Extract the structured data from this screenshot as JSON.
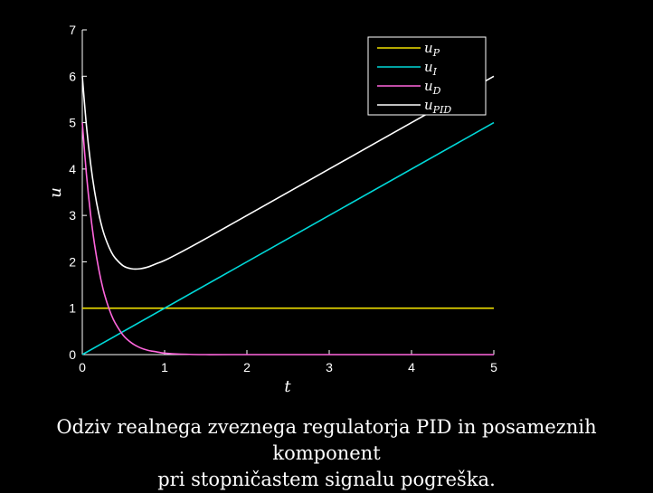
{
  "chart_data": {
    "type": "line",
    "xlabel": "t",
    "ylabel": "u",
    "xlim": [
      0,
      5
    ],
    "ylim": [
      0,
      7
    ],
    "xticks": [
      0,
      1,
      2,
      3,
      4,
      5
    ],
    "yticks": [
      0,
      1,
      2,
      3,
      4,
      5,
      6,
      7
    ],
    "legend_position": "top-right",
    "series": [
      {
        "name": "u",
        "subscript": "P",
        "color": "#f0e000",
        "x": [
          0,
          5
        ],
        "y": [
          1,
          1
        ]
      },
      {
        "name": "u",
        "subscript": "I",
        "color": "#00d8d8",
        "x": [
          0,
          5
        ],
        "y": [
          0,
          5
        ]
      },
      {
        "name": "u",
        "subscript": "D",
        "color": "#ff66dd",
        "x": [
          0,
          0.05,
          0.1,
          0.15,
          0.2,
          0.25,
          0.3,
          0.35,
          0.4,
          0.5,
          0.6,
          0.7,
          0.8,
          0.9,
          1.0,
          1.2,
          1.5,
          2,
          3,
          4,
          5
        ],
        "y": [
          5,
          3.89,
          3.03,
          2.36,
          1.84,
          1.43,
          1.12,
          0.87,
          0.68,
          0.41,
          0.25,
          0.15,
          0.09,
          0.06,
          0.03,
          0.01,
          0.0,
          0,
          0,
          0,
          0
        ]
      },
      {
        "name": "u",
        "subscript": "PID",
        "color": "#ffffff",
        "x": [
          0,
          0.05,
          0.1,
          0.15,
          0.2,
          0.25,
          0.3,
          0.35,
          0.4,
          0.5,
          0.6,
          0.7,
          0.8,
          0.9,
          1.0,
          1.2,
          1.5,
          2,
          3,
          4,
          5
        ],
        "y": [
          6,
          4.94,
          4.13,
          3.51,
          3.04,
          2.68,
          2.42,
          2.22,
          2.08,
          1.91,
          1.85,
          1.85,
          1.89,
          1.96,
          2.03,
          2.21,
          2.5,
          3,
          4,
          5,
          6
        ]
      }
    ]
  },
  "caption": {
    "line1": "Odziv realnega zveznega regulatorja PID in posameznih komponent",
    "line2": "pri stopničastem signalu pogreška."
  }
}
